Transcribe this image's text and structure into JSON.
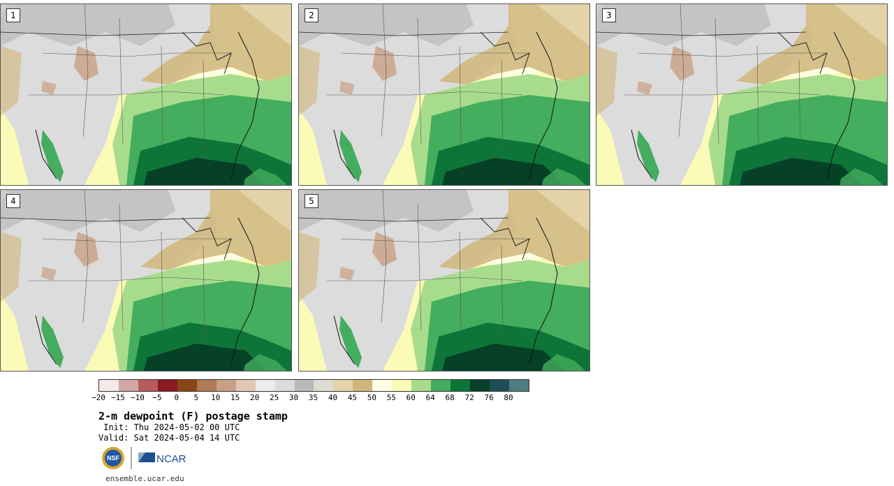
{
  "panels": [
    {
      "label": "1"
    },
    {
      "label": "2"
    },
    {
      "label": "3"
    },
    {
      "label": "4"
    },
    {
      "label": "5"
    }
  ],
  "colorbar": {
    "colors": [
      "#f7eaea",
      "#d4a5a5",
      "#b65c5c",
      "#8b1a22",
      "#8a4615",
      "#b07a56",
      "#c9a083",
      "#e2c7b5",
      "#ececec",
      "#dcdcdc",
      "#b9b9b9",
      "#dcdcd0",
      "#e3d3a9",
      "#d0b67a",
      "#fefee6",
      "#fafbb7",
      "#a8dc8d",
      "#44ad5e",
      "#0e7538",
      "#064027",
      "#1e4f58",
      "#4d7d80"
    ],
    "ticks": [
      "−20",
      "−15",
      "−10",
      "−5",
      "0",
      "5",
      "10",
      "15",
      "20",
      "25",
      "30",
      "35",
      "40",
      "45",
      "50",
      "55",
      "60",
      "64",
      "68",
      "72",
      "76",
      "80"
    ]
  },
  "title": "2-m dewpoint (F) postage stamp",
  "init": " Init: Thu 2024-05-02 00 UTC",
  "valid": "Valid: Sat 2024-05-04 14 UTC",
  "logos": {
    "nsf": "NSF",
    "ncar": "NCAR"
  },
  "site": "ensemble.ucar.edu"
}
